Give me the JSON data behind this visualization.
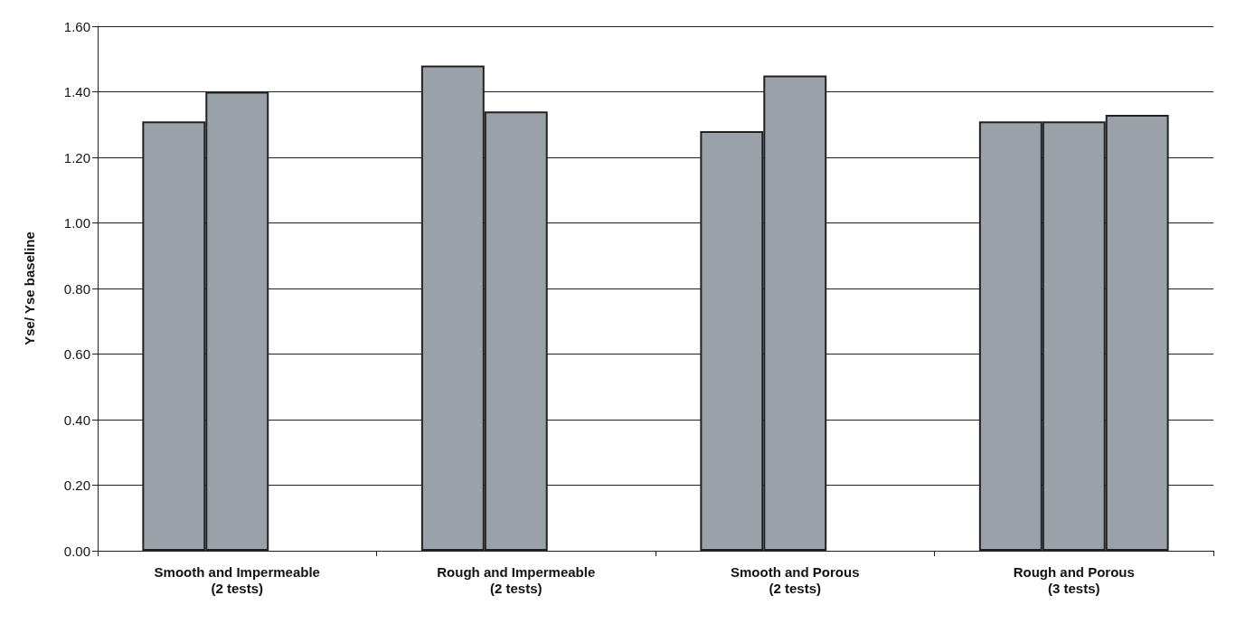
{
  "chart_data": {
    "type": "bar",
    "ylabel": "Yse/ Yse baseline",
    "categories": [
      "Smooth and Impermeable\n(2 tests)",
      "Rough and Impermeable\n(2 tests)",
      "Smooth and Porous\n(2 tests)",
      "Rough and Porous\n(3 tests)"
    ],
    "series": [
      {
        "color": "#9aa1a9",
        "values": [
          1.31,
          1.48,
          1.28,
          1.31
        ]
      },
      {
        "color": "#9aa1a9",
        "values": [
          1.4,
          1.34,
          1.45,
          1.31
        ]
      },
      {
        "color": "#9aa1a9",
        "values": [
          null,
          null,
          null,
          1.33
        ]
      }
    ],
    "ylim": [
      0,
      1.6
    ],
    "yticks": [
      {
        "value": 0,
        "label": "0.00"
      },
      {
        "value": 0.2,
        "label": "0.20"
      },
      {
        "value": 0.4,
        "label": "0.40"
      },
      {
        "value": 0.6,
        "label": "0.60"
      },
      {
        "value": 0.8,
        "label": "0.80"
      },
      {
        "value": 1,
        "label": "1.00"
      },
      {
        "value": 1.2,
        "label": "1.20"
      },
      {
        "value": 1.4,
        "label": "1.40"
      },
      {
        "value": 1.6,
        "label": "1.60"
      }
    ],
    "grid": "y"
  }
}
